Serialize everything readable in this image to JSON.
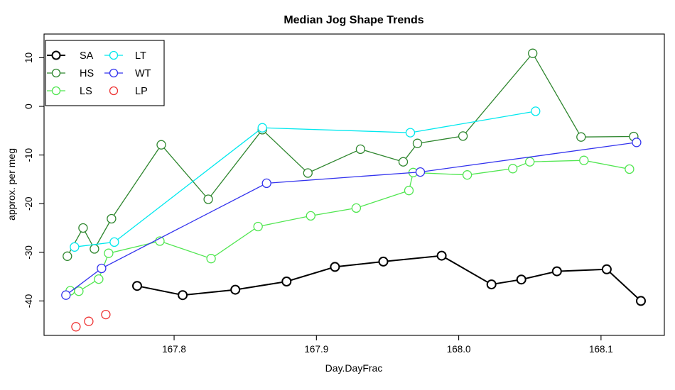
{
  "title": "Median Jog Shape Trends",
  "axes": {
    "x_label": "Day.DayFrac",
    "y_label": "approx. per meg",
    "x_tick_labels": [
      "167.8",
      "167.9",
      "168.0",
      "168.1"
    ],
    "y_tick_labels": [
      "10",
      "0",
      "-10",
      "-20",
      "-30",
      "-40"
    ]
  },
  "legend": {
    "columns": [
      [
        "SA",
        "HS",
        "LS"
      ],
      [
        "LT",
        "WT",
        "LP"
      ]
    ]
  },
  "chart_data": {
    "type": "line",
    "title": "Median Jog Shape Trends",
    "xlabel": "Day.DayFrac",
    "ylabel": "approx. per meg",
    "xlim": [
      167.7086,
      168.1445
    ],
    "ylim": [
      -47.08,
      14.87
    ],
    "x_ticks": [
      167.8,
      167.9,
      168.0,
      168.1
    ],
    "y_ticks": [
      10,
      0,
      -10,
      -20,
      -30,
      -40
    ],
    "grid": false,
    "legend_position": "top-left",
    "series": [
      {
        "name": "SA",
        "color": "#000000",
        "line": true,
        "marker": "open-circle",
        "points": [
          [
            167.774,
            -36.9
          ],
          [
            167.806,
            -38.8
          ],
          [
            167.843,
            -37.7
          ],
          [
            167.879,
            -36.0
          ],
          [
            167.913,
            -33.0
          ],
          [
            167.947,
            -31.9
          ],
          [
            167.988,
            -30.7
          ],
          [
            168.023,
            -36.6
          ],
          [
            168.044,
            -35.6
          ],
          [
            168.069,
            -33.9
          ],
          [
            168.104,
            -33.5
          ],
          [
            168.128,
            -40.0
          ]
        ]
      },
      {
        "name": "HS",
        "color": "#2e862e",
        "line": true,
        "marker": "open-circle",
        "points": [
          [
            167.725,
            -30.8
          ],
          [
            167.736,
            -25.0
          ],
          [
            167.744,
            -29.3
          ],
          [
            167.756,
            -23.1
          ],
          [
            167.791,
            -7.9
          ],
          [
            167.824,
            -19.1
          ],
          [
            167.862,
            -4.8
          ],
          [
            167.894,
            -13.7
          ],
          [
            167.931,
            -8.8
          ],
          [
            167.961,
            -11.4
          ],
          [
            167.971,
            -7.6
          ],
          [
            168.003,
            -6.1
          ],
          [
            168.052,
            10.9
          ],
          [
            168.086,
            -6.3
          ],
          [
            168.123,
            -6.2
          ]
        ]
      },
      {
        "name": "LS",
        "color": "#50e650",
        "line": true,
        "marker": "open-circle",
        "points": [
          [
            167.727,
            -37.9
          ],
          [
            167.733,
            -38.0
          ],
          [
            167.747,
            -35.5
          ],
          [
            167.754,
            -30.2
          ],
          [
            167.79,
            -27.7
          ],
          [
            167.826,
            -31.3
          ],
          [
            167.859,
            -24.7
          ],
          [
            167.896,
            -22.5
          ],
          [
            167.928,
            -20.9
          ],
          [
            167.965,
            -17.3
          ],
          [
            167.968,
            -13.6
          ],
          [
            168.006,
            -14.1
          ],
          [
            168.038,
            -12.8
          ],
          [
            168.05,
            -11.4
          ],
          [
            168.088,
            -11.1
          ],
          [
            168.12,
            -12.9
          ]
        ]
      },
      {
        "name": "LT",
        "color": "#00e8ee",
        "line": true,
        "marker": "open-circle",
        "points": [
          [
            167.73,
            -28.9
          ],
          [
            167.758,
            -27.9
          ],
          [
            167.862,
            -4.4
          ],
          [
            167.966,
            -5.4
          ],
          [
            168.054,
            -1.0
          ]
        ]
      },
      {
        "name": "WT",
        "color": "#3333ee",
        "line": true,
        "marker": "open-circle",
        "points": [
          [
            167.724,
            -38.8
          ],
          [
            167.749,
            -33.3
          ],
          [
            167.865,
            -15.8
          ],
          [
            167.973,
            -13.5
          ],
          [
            168.125,
            -7.4
          ]
        ]
      },
      {
        "name": "LP",
        "color": "#ee3333",
        "line": false,
        "marker": "open-circle",
        "points": [
          [
            167.731,
            -45.3
          ],
          [
            167.74,
            -44.2
          ],
          [
            167.752,
            -42.8
          ]
        ]
      }
    ]
  }
}
